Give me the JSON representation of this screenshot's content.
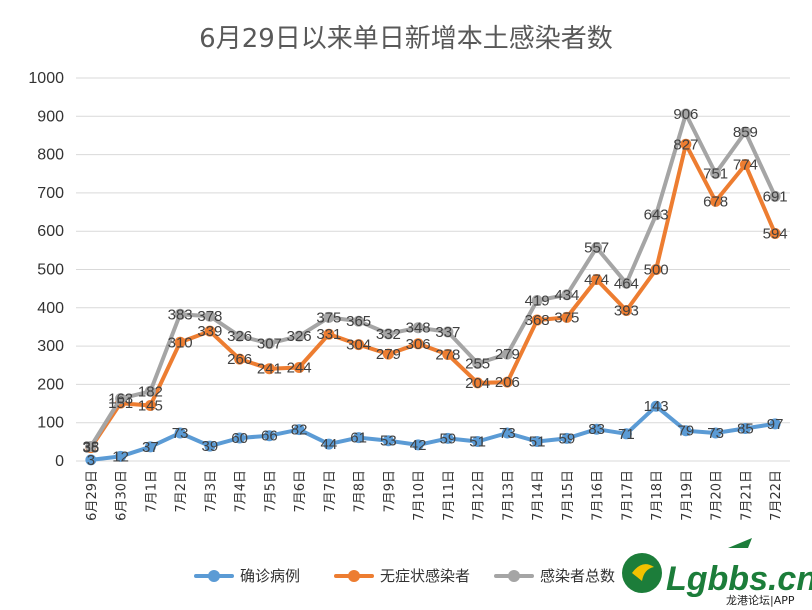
{
  "chart_data": {
    "type": "line",
    "title": "6月29日以来单日新增本土感染者数",
    "categories": [
      "6月29日",
      "6月30日",
      "7月1日",
      "7月2日",
      "7月3日",
      "7月4日",
      "7月5日",
      "7月6日",
      "7月7日",
      "7月8日",
      "7月9日",
      "7月10日",
      "7月11日",
      "7月12日",
      "7月13日",
      "7月14日",
      "7月15日",
      "7月16日",
      "7月17日",
      "7月18日",
      "7月19日",
      "7月20日",
      "7月21日",
      "7月22日"
    ],
    "ylim": [
      0,
      1000
    ],
    "yticks": [
      "0",
      "100",
      "200",
      "300",
      "400",
      "500",
      "600",
      "700",
      "800",
      "900",
      "1000"
    ],
    "grid": true,
    "legend_position": "bottom",
    "series": [
      {
        "name": "确诊病例",
        "color": "#5b9bd5",
        "values": [
          3,
          12,
          37,
          73,
          39,
          60,
          66,
          82,
          44,
          61,
          53,
          42,
          59,
          51,
          73,
          51,
          59,
          83,
          71,
          143,
          79,
          73,
          85,
          97
        ]
      },
      {
        "name": "无症状感染者",
        "color": "#ed7d31",
        "values": [
          35,
          151,
          145,
          310,
          339,
          266,
          241,
          244,
          331,
          304,
          279,
          306,
          278,
          204,
          206,
          368,
          375,
          474,
          393,
          500,
          827,
          678,
          774,
          594
        ]
      },
      {
        "name": "感染者总数",
        "color": "#a5a5a5",
        "values": [
          38,
          163,
          182,
          383,
          378,
          326,
          307,
          326,
          375,
          365,
          332,
          348,
          337,
          255,
          279,
          419,
          434,
          557,
          464,
          643,
          906,
          751,
          859,
          691
        ]
      }
    ]
  },
  "watermark": {
    "logo_text": "Lgbbs.cn",
    "sub_text": "龙港论坛|APP"
  }
}
